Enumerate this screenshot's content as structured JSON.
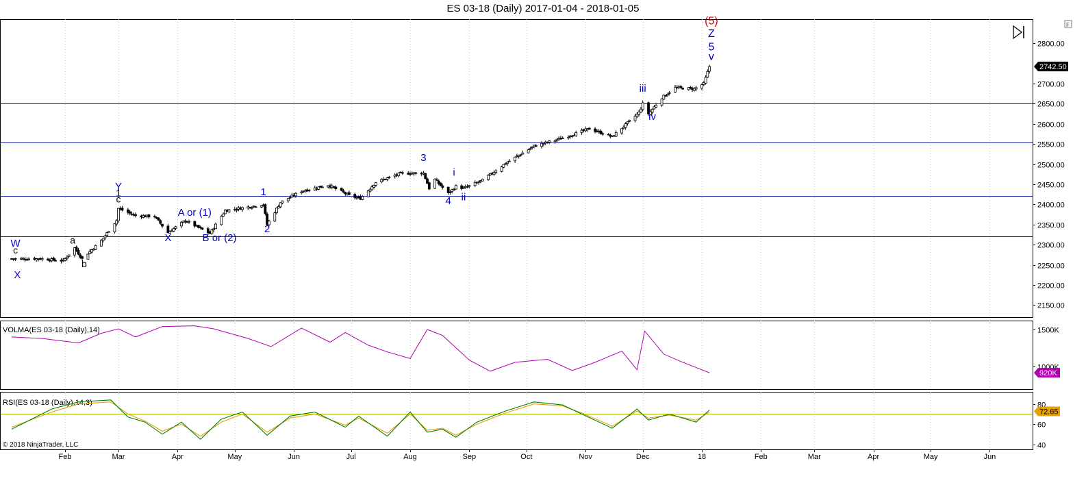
{
  "window": {
    "title": "ES 03-18 (Daily)  2017-01-04 - 2018-01-05",
    "copyright": "© 2018 NinjaTrader, LLC",
    "corner_badge": "F",
    "play_icon": "play-end-icon"
  },
  "chart_data": [
    {
      "type": "candlestick",
      "instrument": "ES 03-18 (Daily)",
      "date_range": [
        "2017-01-04",
        "2018-01-05"
      ],
      "ylim": [
        2120,
        2860
      ],
      "y_ticks": [
        {
          "value": 2150,
          "label": "2150.00"
        },
        {
          "value": 2200,
          "label": "2200.00"
        },
        {
          "value": 2250,
          "label": "2250.00"
        },
        {
          "value": 2300,
          "label": "2300.00"
        },
        {
          "value": 2350,
          "label": "2350.00"
        },
        {
          "value": 2400,
          "label": "2400.00"
        },
        {
          "value": 2450,
          "label": "2450.00"
        },
        {
          "value": 2500,
          "label": "2500.00"
        },
        {
          "value": 2550,
          "label": "2550.00"
        },
        {
          "value": 2600,
          "label": "2600.00"
        },
        {
          "value": 2650,
          "label": "2650.00"
        },
        {
          "value": 2700,
          "label": "2700.00"
        },
        {
          "value": 2800,
          "label": "2800.00"
        }
      ],
      "x_ticks": [
        {
          "date": "2017-02-01",
          "label": "Feb"
        },
        {
          "date": "2017-03-01",
          "label": "Mar"
        },
        {
          "date": "2017-04-01",
          "label": "Apr"
        },
        {
          "date": "2017-05-01",
          "label": "May"
        },
        {
          "date": "2017-06-01",
          "label": "Jun"
        },
        {
          "date": "2017-07-01",
          "label": "Jul"
        },
        {
          "date": "2017-08-01",
          "label": "Aug"
        },
        {
          "date": "2017-09-01",
          "label": "Sep"
        },
        {
          "date": "2017-10-01",
          "label": "Oct"
        },
        {
          "date": "2017-11-01",
          "label": "Nov"
        },
        {
          "date": "2017-12-01",
          "label": "Dec"
        },
        {
          "date": "2018-01-01",
          "label": "18"
        },
        {
          "date": "2018-02-01",
          "label": "Feb"
        },
        {
          "date": "2018-03-01",
          "label": "Mar"
        },
        {
          "date": "2018-04-01",
          "label": "Apr"
        },
        {
          "date": "2018-05-01",
          "label": "May"
        },
        {
          "date": "2018-06-01",
          "label": "Jun"
        }
      ],
      "x_range": [
        "2017-01-01",
        "2018-06-26"
      ],
      "last_price": {
        "value": 2742.5,
        "label": "2742.50"
      },
      "horizontal_lines": [
        2320,
        2421,
        2554,
        2650
      ],
      "close_path": [
        [
          "2017-01-04",
          2265
        ],
        [
          "2017-01-20",
          2265
        ],
        [
          "2017-01-31",
          2260
        ],
        [
          "2017-02-06",
          2292
        ],
        [
          "2017-02-10",
          2265
        ],
        [
          "2017-02-20",
          2310
        ],
        [
          "2017-02-28",
          2360
        ],
        [
          "2017-03-01",
          2390
        ],
        [
          "2017-03-10",
          2372
        ],
        [
          "2017-03-20",
          2370
        ],
        [
          "2017-03-27",
          2330
        ],
        [
          "2017-04-05",
          2360
        ],
        [
          "2017-04-13",
          2340
        ],
        [
          "2017-04-18",
          2328
        ],
        [
          "2017-04-26",
          2385
        ],
        [
          "2017-05-10",
          2395
        ],
        [
          "2017-05-16",
          2400
        ],
        [
          "2017-05-18",
          2350
        ],
        [
          "2017-05-25",
          2405
        ],
        [
          "2017-06-05",
          2433
        ],
        [
          "2017-06-19",
          2448
        ],
        [
          "2017-07-01",
          2420
        ],
        [
          "2017-07-06",
          2415
        ],
        [
          "2017-07-14",
          2455
        ],
        [
          "2017-07-27",
          2477
        ],
        [
          "2017-08-08",
          2478
        ],
        [
          "2017-08-11",
          2440
        ],
        [
          "2017-08-14",
          2462
        ],
        [
          "2017-08-21",
          2427
        ],
        [
          "2017-08-25",
          2445
        ],
        [
          "2017-08-29",
          2440
        ],
        [
          "2017-09-08",
          2460
        ],
        [
          "2017-09-20",
          2502
        ],
        [
          "2017-10-05",
          2545
        ],
        [
          "2017-10-20",
          2565
        ],
        [
          "2017-11-03",
          2588
        ],
        [
          "2017-11-15",
          2568
        ],
        [
          "2017-11-29",
          2628
        ],
        [
          "2017-12-01",
          2650
        ],
        [
          "2017-12-04",
          2625
        ],
        [
          "2017-12-11",
          2665
        ],
        [
          "2017-12-18",
          2690
        ],
        [
          "2017-12-28",
          2687
        ],
        [
          "2018-01-02",
          2700
        ],
        [
          "2018-01-05",
          2742.5
        ]
      ],
      "wave_labels": [
        {
          "text": "W",
          "date": "2017-01-06",
          "price": 2295,
          "color": "#0000cc",
          "size": 15
        },
        {
          "text": "c",
          "date": "2017-01-06",
          "price": 2278,
          "color": "#000000",
          "size": 14
        },
        {
          "text": "X",
          "date": "2017-01-07",
          "price": 2217,
          "color": "#0000cc",
          "size": 15
        },
        {
          "text": "a",
          "date": "2017-02-05",
          "price": 2303,
          "color": "#000000",
          "size": 14
        },
        {
          "text": "b",
          "date": "2017-02-11",
          "price": 2244,
          "color": "#000000",
          "size": 14
        },
        {
          "text": "Y",
          "date": "2017-03-01",
          "price": 2436,
          "color": "#0000cc",
          "size": 15
        },
        {
          "text": "1",
          "date": "2017-03-01",
          "price": 2420,
          "color": "#000000",
          "size": 14
        },
        {
          "text": "c",
          "date": "2017-03-01",
          "price": 2405,
          "color": "#000000",
          "size": 14
        },
        {
          "text": "A or (1)",
          "date": "2017-04-10",
          "price": 2372,
          "color": "#0000cc",
          "size": 15
        },
        {
          "text": "X",
          "date": "2017-03-27",
          "price": 2309,
          "color": "#0000cc",
          "size": 15
        },
        {
          "text": "B or (2)",
          "date": "2017-04-23",
          "price": 2309,
          "color": "#0000cc",
          "size": 15
        },
        {
          "text": "1",
          "date": "2017-05-16",
          "price": 2423,
          "color": "#0000cc",
          "size": 15
        },
        {
          "text": "2",
          "date": "2017-05-18",
          "price": 2331,
          "color": "#0000cc",
          "size": 15
        },
        {
          "text": "3",
          "date": "2017-08-08",
          "price": 2508,
          "color": "#0000cc",
          "size": 15
        },
        {
          "text": "i",
          "date": "2017-08-24",
          "price": 2471,
          "color": "#0000cc",
          "size": 15
        },
        {
          "text": "4",
          "date": "2017-08-21",
          "price": 2401,
          "color": "#0000cc",
          "size": 15
        },
        {
          "text": "ii",
          "date": "2017-08-29",
          "price": 2410,
          "color": "#0000cc",
          "size": 15
        },
        {
          "text": "iii",
          "date": "2017-12-01",
          "price": 2680,
          "color": "#0000cc",
          "size": 15
        },
        {
          "text": "iv",
          "date": "2017-12-06",
          "price": 2610,
          "color": "#0000cc",
          "size": 15
        },
        {
          "text": "(5)",
          "date": "2018-01-06",
          "price": 2847,
          "color": "#cc0000",
          "size": 16
        },
        {
          "text": "Z",
          "date": "2018-01-06",
          "price": 2816,
          "color": "#0000cc",
          "size": 16
        },
        {
          "text": "5",
          "date": "2018-01-06",
          "price": 2783,
          "color": "#0000cc",
          "size": 16
        },
        {
          "text": "v",
          "date": "2018-01-06",
          "price": 2759,
          "color": "#0000cc",
          "size": 16
        }
      ]
    },
    {
      "type": "line",
      "name": "VOLMA(ES 03-18 (Daily),14)",
      "ylim": [
        700000,
        1620000
      ],
      "y_ticks": [
        {
          "value": 1000000,
          "label": "1000K"
        },
        {
          "value": 1500000,
          "label": "1500K"
        }
      ],
      "last_value": {
        "value": 920000,
        "label": "920K"
      },
      "color": "#b000b0",
      "x": [
        "2017-01-04",
        "2017-01-20",
        "2017-02-08",
        "2017-02-20",
        "2017-03-01",
        "2017-03-10",
        "2017-03-24",
        "2017-04-10",
        "2017-04-20",
        "2017-05-08",
        "2017-05-20",
        "2017-06-05",
        "2017-06-20",
        "2017-06-28",
        "2017-07-10",
        "2017-07-20",
        "2017-08-01",
        "2017-08-10",
        "2017-08-18",
        "2017-09-01",
        "2017-09-12",
        "2017-09-25",
        "2017-10-12",
        "2017-10-25",
        "2017-11-05",
        "2017-11-20",
        "2017-11-28",
        "2017-12-02",
        "2017-12-12",
        "2017-12-22",
        "2018-01-05"
      ],
      "y": [
        1400000,
        1380000,
        1320000,
        1450000,
        1510000,
        1400000,
        1540000,
        1550000,
        1510000,
        1380000,
        1270000,
        1520000,
        1330000,
        1460000,
        1290000,
        1200000,
        1110000,
        1500000,
        1420000,
        1090000,
        940000,
        1060000,
        1100000,
        950000,
        1050000,
        1210000,
        960000,
        1480000,
        1170000,
        1060000,
        920000
      ]
    },
    {
      "type": "line",
      "name": "RSI(ES 03-18 (Daily),14,3)",
      "ylim": [
        35,
        92
      ],
      "y_ticks": [
        {
          "value": 40,
          "label": "40"
        },
        {
          "value": 60,
          "label": "60"
        },
        {
          "value": 80,
          "label": "80"
        }
      ],
      "reference_line": 70,
      "last_value": {
        "value": 72.65,
        "label": "72.65"
      },
      "series": [
        {
          "color": "#008000",
          "x": [
            "2017-01-04",
            "2017-01-25",
            "2017-02-08",
            "2017-02-25",
            "2017-03-06",
            "2017-03-15",
            "2017-03-24",
            "2017-04-03",
            "2017-04-13",
            "2017-04-24",
            "2017-05-05",
            "2017-05-18",
            "2017-05-30",
            "2017-06-12",
            "2017-06-28",
            "2017-07-05",
            "2017-07-20",
            "2017-08-01",
            "2017-08-10",
            "2017-08-18",
            "2017-08-25",
            "2017-09-05",
            "2017-09-20",
            "2017-10-05",
            "2017-10-20",
            "2017-10-30",
            "2017-11-15",
            "2017-11-28",
            "2017-12-04",
            "2017-12-15",
            "2017-12-29",
            "2018-01-05"
          ],
          "y": [
            55,
            75,
            82,
            84,
            67,
            62,
            50,
            62,
            45,
            65,
            72,
            49,
            68,
            72,
            57,
            68,
            48,
            72,
            52,
            55,
            47,
            62,
            73,
            82,
            79,
            70,
            56,
            75,
            64,
            70,
            62,
            74
          ]
        },
        {
          "color": "#e6a000",
          "x": [
            "2017-01-04",
            "2017-01-25",
            "2017-02-08",
            "2017-02-25",
            "2017-03-06",
            "2017-03-15",
            "2017-03-24",
            "2017-04-03",
            "2017-04-13",
            "2017-04-24",
            "2017-05-05",
            "2017-05-18",
            "2017-05-30",
            "2017-06-12",
            "2017-06-28",
            "2017-07-05",
            "2017-07-20",
            "2017-08-01",
            "2017-08-10",
            "2017-08-18",
            "2017-08-25",
            "2017-09-05",
            "2017-09-20",
            "2017-10-05",
            "2017-10-20",
            "2017-10-30",
            "2017-11-15",
            "2017-11-28",
            "2017-12-04",
            "2017-12-15",
            "2017-12-29",
            "2018-01-05"
          ],
          "y": [
            57,
            72,
            80,
            82,
            70,
            63,
            53,
            60,
            48,
            62,
            70,
            52,
            66,
            70,
            59,
            66,
            51,
            70,
            54,
            56,
            49,
            60,
            71,
            80,
            78,
            71,
            58,
            73,
            66,
            69,
            64,
            72
          ]
        }
      ]
    }
  ]
}
